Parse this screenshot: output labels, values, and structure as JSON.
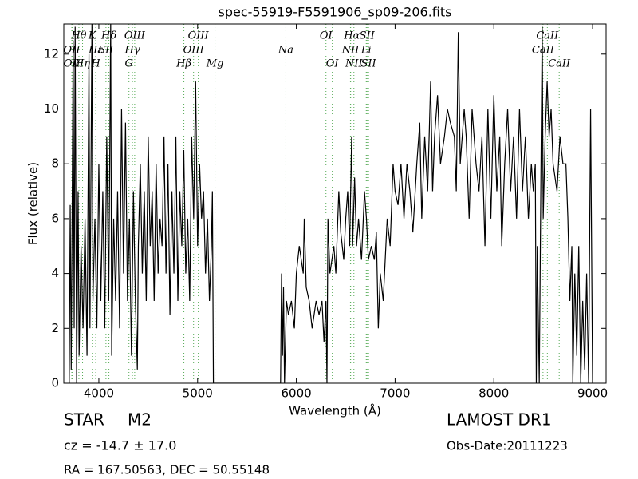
{
  "chart_data": {
    "type": "line",
    "title": "spec-55919-F5591906_sp09-206.fits",
    "x_label": "Wavelength (Å)",
    "y_label": "Flux (relative)",
    "xlim": [
      3645,
      9137
    ],
    "ylim": [
      0,
      13.1
    ],
    "xticks": [
      4000,
      5000,
      6000,
      7000,
      8000,
      9000
    ],
    "yticks": [
      0,
      2,
      4,
      6,
      8,
      10,
      12
    ],
    "color": "#000000",
    "line_color": "#55aa55",
    "x": [
      3700,
      3710,
      3720,
      3740,
      3750,
      3760,
      3775,
      3790,
      3800,
      3820,
      3840,
      3860,
      3880,
      3900,
      3910,
      3930,
      3940,
      3960,
      3980,
      4000,
      4020,
      4040,
      4060,
      4080,
      4100,
      4120,
      4130,
      4150,
      4170,
      4190,
      4210,
      4230,
      4250,
      4270,
      4290,
      4310,
      4330,
      4350,
      4370,
      4390,
      4400,
      4420,
      4440,
      4460,
      4480,
      4500,
      4520,
      4540,
      4560,
      4580,
      4600,
      4620,
      4640,
      4660,
      4680,
      4700,
      4720,
      4740,
      4760,
      4780,
      4800,
      4820,
      4840,
      4860,
      4880,
      4900,
      4920,
      4940,
      4960,
      4980,
      5000,
      5020,
      5040,
      5060,
      5080,
      5100,
      5120,
      5140,
      5150,
      5160,
      5600,
      5800,
      5840,
      5850,
      5860,
      5870,
      5880,
      5890,
      5900,
      5920,
      5950,
      5980,
      6000,
      6030,
      6050,
      6070,
      6080,
      6100,
      6130,
      6160,
      6200,
      6230,
      6260,
      6280,
      6300,
      6310,
      6320,
      6340,
      6380,
      6400,
      6430,
      6450,
      6480,
      6500,
      6520,
      6540,
      6560,
      6570,
      6590,
      6610,
      6630,
      6660,
      6690,
      6710,
      6730,
      6760,
      6790,
      6810,
      6830,
      6850,
      6880,
      6920,
      6950,
      6980,
      7000,
      7030,
      7060,
      7090,
      7120,
      7150,
      7180,
      7220,
      7250,
      7270,
      7300,
      7330,
      7360,
      7380,
      7400,
      7430,
      7460,
      7500,
      7530,
      7560,
      7600,
      7620,
      7640,
      7660,
      7700,
      7720,
      7750,
      7780,
      7820,
      7850,
      7880,
      7910,
      7940,
      7970,
      8000,
      8030,
      8060,
      8080,
      8110,
      8140,
      8170,
      8200,
      8230,
      8260,
      8290,
      8320,
      8350,
      8380,
      8400,
      8420,
      8430,
      8440,
      8460,
      8480,
      8490,
      8500,
      8520,
      8540,
      8560,
      8580,
      8600,
      8640,
      8670,
      8700,
      8730,
      8750,
      8770,
      8790,
      8800,
      8820,
      8840,
      8860,
      8880,
      8900,
      8920,
      8940,
      8960,
      8980,
      9000
    ],
    "values": [
      0,
      6.5,
      0.5,
      12.5,
      2,
      13,
      0,
      7,
      1,
      5,
      2,
      6,
      1,
      12,
      2,
      13.1,
      3,
      6,
      2,
      8,
      3,
      7,
      2,
      9,
      3,
      13.1,
      1,
      6,
      3,
      7,
      2,
      10,
      4,
      9.5,
      3,
      6,
      1,
      7,
      3,
      0.5,
      5,
      8,
      4,
      7,
      3,
      9,
      5,
      7,
      3,
      8,
      4,
      6,
      5,
      9,
      4,
      8,
      2.5,
      7,
      4,
      9,
      3,
      7,
      5,
      8.5,
      4,
      6,
      3,
      9,
      6,
      11,
      5,
      8,
      6,
      7,
      4,
      6,
      3,
      5,
      7,
      0,
      0,
      0,
      0,
      4,
      1,
      3.5,
      0,
      1.5,
      3,
      2.5,
      3,
      2,
      4,
      5,
      4.5,
      4,
      6,
      3.5,
      3,
      2,
      3,
      2.5,
      3,
      1.5,
      3,
      0,
      6,
      4,
      5,
      4,
      7,
      5.5,
      4.5,
      6,
      7,
      5,
      9,
      5,
      7.5,
      5,
      6,
      4.5,
      7,
      6,
      4.5,
      5,
      4.5,
      5.5,
      2,
      4,
      3,
      6,
      5,
      8,
      7,
      6.5,
      8,
      6,
      8,
      7,
      5.5,
      8,
      9.5,
      6,
      9,
      7,
      11,
      7,
      9,
      10.5,
      8,
      9,
      10,
      9.5,
      9,
      7,
      12.8,
      8,
      10,
      9,
      6,
      10,
      8,
      7,
      9,
      5,
      10,
      6,
      10.5,
      7,
      9,
      5,
      8,
      10,
      7,
      9,
      6,
      10,
      7,
      9,
      6,
      8,
      7,
      8,
      0,
      5,
      0,
      9,
      13,
      6,
      9,
      11,
      9,
      10,
      8,
      7,
      9,
      8,
      8,
      6,
      3,
      5,
      0,
      4,
      1,
      5,
      0,
      3,
      0.5,
      4,
      0,
      10,
      0
    ],
    "spectral_lines": [
      {
        "label": "OII",
        "x": 3726
      },
      {
        "label": "OII",
        "x": 3729
      },
      {
        "label": "Hθ",
        "x": 3798
      },
      {
        "label": "Hη",
        "x": 3835
      },
      {
        "label": "K",
        "x": 3934
      },
      {
        "label": "H",
        "x": 3969
      },
      {
        "label": "Hε",
        "x": 3970
      },
      {
        "label": "SII",
        "x": 4072
      },
      {
        "label": "Hδ",
        "x": 4102
      },
      {
        "label": "G",
        "x": 4305
      },
      {
        "label": "Hγ",
        "x": 4340
      },
      {
        "label": "OIII",
        "x": 4363
      },
      {
        "label": "Hβ",
        "x": 4861
      },
      {
        "label": "OIII",
        "x": 4959
      },
      {
        "label": "OIII",
        "x": 5007
      },
      {
        "label": "Mg",
        "x": 5176
      },
      {
        "label": "Na",
        "x": 5894
      },
      {
        "label": "OI",
        "x": 6300
      },
      {
        "label": "OI",
        "x": 6364
      },
      {
        "label": "NII",
        "x": 6548
      },
      {
        "label": "Hα",
        "x": 6563
      },
      {
        "label": "NII",
        "x": 6583
      },
      {
        "label": "Li",
        "x": 6708
      },
      {
        "label": "SII",
        "x": 6716
      },
      {
        "label": "SII",
        "x": 6731
      },
      {
        "label": "CaII",
        "x": 8498
      },
      {
        "label": "CaII",
        "x": 8542
      },
      {
        "label": "CaII",
        "x": 8662
      }
    ],
    "annotations": [
      "STAR",
      "M2",
      "cz = -14.7 ± 17.0",
      "RA = 167.50563, DEC = 50.55148",
      "LAMOST DR1",
      "Obs-Date:20111223"
    ]
  }
}
